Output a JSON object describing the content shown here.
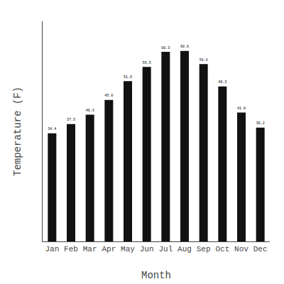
{
  "chart_data": {
    "type": "bar",
    "categories": [
      "Jan",
      "Feb",
      "Mar",
      "Apr",
      "May",
      "Jun",
      "Jul",
      "Aug",
      "Sep",
      "Oct",
      "Nov",
      "Dec"
    ],
    "values": [
      34.4,
      37.3,
      40.3,
      45.0,
      51.0,
      55.5,
      60.3,
      60.6,
      56.4,
      49.3,
      41.0,
      36.2
    ],
    "value_labels": [
      "34.4",
      "37.3",
      "40.3",
      "45.0",
      "51.0",
      "55.5",
      "60.3",
      "60.6",
      "56.4",
      "49.3",
      "41.0",
      "36.2"
    ],
    "data_labels": true,
    "color": "#111111",
    "x_label": "Month",
    "y_label": "Temperature (F)",
    "ylim": [
      0,
      70
    ],
    "tick_labels": "x",
    "grid": false
  }
}
